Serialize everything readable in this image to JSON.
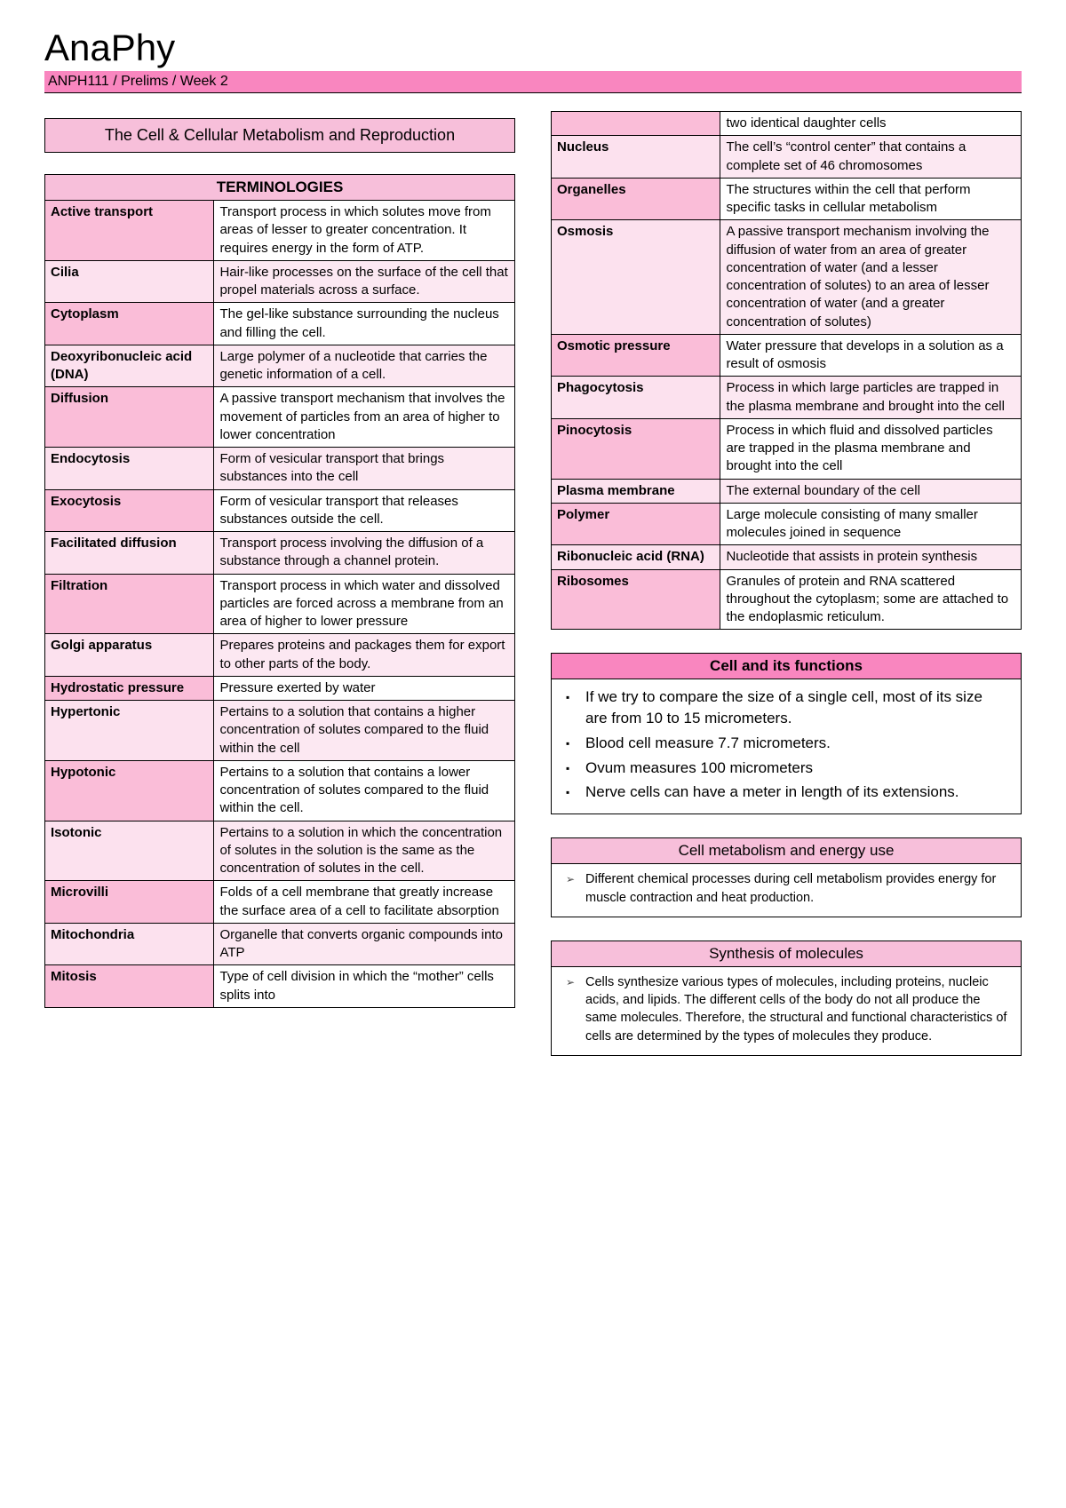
{
  "title": "AnaPhy",
  "breadcrumb": "ANPH111 / Prelims / Week 2",
  "topic": "The Cell & Cellular Metabolism and Reproduction",
  "terminologies_header": "TERMINOLOGIES",
  "colors": {
    "pink_dark": "#f986bf",
    "pink_mid": "#f7bfda",
    "pink_cell": "#fabdd8",
    "pink_cell_alt": "#fce1ee",
    "pink_val_alt": "#fce8f2",
    "border": "#000000",
    "text": "#000000",
    "bg": "#ffffff"
  },
  "terms_left": [
    {
      "k": "Active transport",
      "v": "Transport process in which solutes move from areas of lesser to greater concentration. It requires energy in the form of ATP."
    },
    {
      "k": "Cilia",
      "v": "Hair-like processes on the surface of the cell that propel materials across a surface."
    },
    {
      "k": "Cytoplasm",
      "v": "The gel-like substance surrounding the nucleus and filling the cell."
    },
    {
      "k": "Deoxyribonucleic acid (DNA)",
      "v": "Large polymer of a nucleotide that carries the genetic information of a cell."
    },
    {
      "k": "Diffusion",
      "v": "A passive transport mechanism that involves the movement of particles from an area of higher to lower concentration"
    },
    {
      "k": "Endocytosis",
      "v": "Form of vesicular transport that brings substances into the cell"
    },
    {
      "k": "Exocytosis",
      "v": "Form of vesicular transport that releases substances outside the cell."
    },
    {
      "k": "Facilitated diffusion",
      "v": "Transport process involving the diffusion of a substance through a channel protein."
    },
    {
      "k": "Filtration",
      "v": "Transport process in which water and dissolved particles are forced across a membrane from an area of higher to lower pressure"
    },
    {
      "k": "Golgi apparatus",
      "v": "Prepares proteins and packages them for export to other parts of the body."
    },
    {
      "k": "Hydrostatic pressure",
      "v": "Pressure exerted by water"
    },
    {
      "k": "Hypertonic",
      "v": "Pertains to a solution that contains a higher concentration of solutes compared to the fluid within the cell"
    },
    {
      "k": "Hypotonic",
      "v": "Pertains to a solution that contains a lower concentration of solutes compared to the fluid within the cell."
    },
    {
      "k": "Isotonic",
      "v": "Pertains to a solution in which the concentration of solutes in the solution is the same as the concentration of solutes in the cell."
    },
    {
      "k": "Microvilli",
      "v": "Folds of a cell membrane that greatly increase the surface area of a cell to facilitate absorption"
    },
    {
      "k": "Mitochondria",
      "v": "Organelle that converts organic compounds into ATP"
    },
    {
      "k": "Mitosis",
      "v": "Type of cell division in which the “mother” cells splits into"
    }
  ],
  "terms_right": [
    {
      "k": "",
      "v": "two identical daughter cells"
    },
    {
      "k": "Nucleus",
      "v": "The cell’s “control center” that contains a complete set of 46 chromosomes"
    },
    {
      "k": "Organelles",
      "v": "The structures within the cell that perform specific tasks in cellular metabolism"
    },
    {
      "k": "Osmosis",
      "v": "A passive transport mechanism involving the diffusion of water from an area of greater concentration of water (and a lesser concentration of solutes) to an area of lesser concentration of water (and a greater concentration of solutes)"
    },
    {
      "k": "Osmotic pressure",
      "v": "Water pressure that develops in a solution as a result of osmosis"
    },
    {
      "k": "Phagocytosis",
      "v": "Process in which large particles are trapped in the plasma membrane and brought into the cell"
    },
    {
      "k": "Pinocytosis",
      "v": "Process in which fluid and dissolved particles are trapped in the plasma membrane and brought into the cell"
    },
    {
      "k": "Plasma membrane",
      "v": "The external boundary of the cell"
    },
    {
      "k": "Polymer",
      "v": "Large molecule consisting of many smaller molecules joined in sequence"
    },
    {
      "k": "Ribonucleic acid (RNA)",
      "v": "Nucleotide that assists in protein synthesis"
    },
    {
      "k": "Ribosomes",
      "v": "Granules of protein and RNA scattered throughout the cytoplasm; some are attached to the endoplasmic reticulum."
    }
  ],
  "sections": {
    "cell_functions": {
      "title": "Cell and its functions",
      "items": [
        "If we try to compare the size of a single cell, most of its size are from 10 to 15 micrometers.",
        "Blood cell measure 7.7 micrometers.",
        "Ovum measures 100 micrometers",
        "Nerve cells can have a meter in length of its extensions."
      ]
    },
    "metabolism": {
      "title": "Cell metabolism and energy use",
      "items": [
        "Different chemical processes during cell metabolism provides energy for muscle contraction and heat production."
      ]
    },
    "synthesis": {
      "title": "Synthesis of molecules",
      "items": [
        "Cells synthesize various types of molecules, including proteins, nucleic acids, and lipids. The different cells of the body do not all produce the same molecules. Therefore, the structural and functional characteristics of cells are determined by the types of molecules they produce."
      ]
    }
  }
}
